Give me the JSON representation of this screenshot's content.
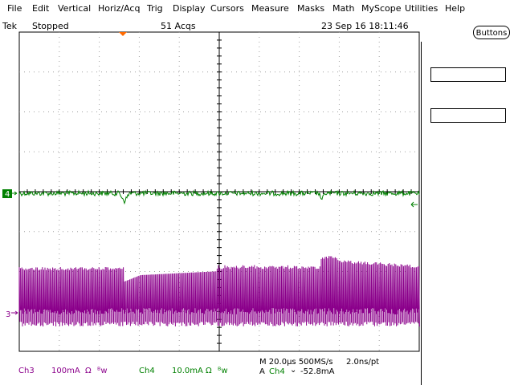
{
  "menu": [
    {
      "label": "File"
    },
    {
      "label": "Edit"
    },
    {
      "label": "Vertical"
    },
    {
      "label": "Horiz/Acq"
    },
    {
      "label": "Trig"
    },
    {
      "label": "Display"
    },
    {
      "label": "Cursors"
    },
    {
      "label": "Measure"
    },
    {
      "label": "Masks"
    },
    {
      "label": "Math"
    },
    {
      "label": "MyScope"
    },
    {
      "label": "Utilities"
    },
    {
      "label": "Help"
    }
  ],
  "status": {
    "brand": "Tek",
    "run_state": "Stopped",
    "acqs": "51 Acqs",
    "datetime": "23 Sep 16 18:11:46",
    "buttons_label": "Buttons"
  },
  "markers": {
    "ch4": "4",
    "ch3": "3"
  },
  "colors": {
    "ch3": "#8b008b",
    "ch4": "#008000",
    "trigger": "#ff6a00"
  },
  "readouts": {
    "ch3_name": "Ch3",
    "ch3_scale": "100mA",
    "ch3_ohm": "Ω",
    "ch3_bw": "ᴮw",
    "ch4_name": "Ch4",
    "ch4_scale": "10.0mA",
    "ch4_ohm": "Ω",
    "ch4_bw": "ᴮw",
    "timebase": "M 20.0µs 500MS/s",
    "resolution": "2.0ns/pt",
    "trig_source": "A",
    "trig_channel": "Ch4",
    "trig_slope": "⌄",
    "trig_level": "-52.8mA"
  }
}
